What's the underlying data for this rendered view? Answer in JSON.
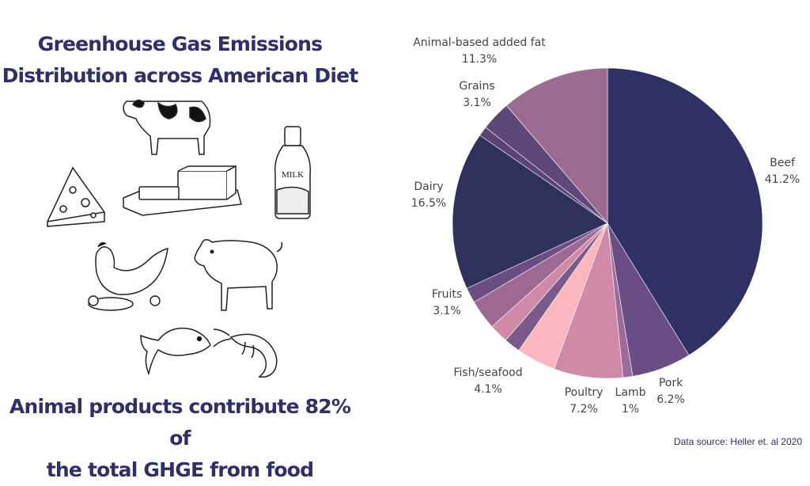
{
  "title": {
    "line1": "Greenhouse Gas Emissions",
    "line2": "Distribution across American Diet"
  },
  "footer": {
    "line1": "Animal products contribute 82% of",
    "line2": "the total GHGE  from food"
  },
  "source": "Data source: Heller et. al 2020",
  "illustrations": {
    "milk_label": "MILK",
    "icons": [
      "cow-icon",
      "cheese-icon",
      "butter-icon",
      "milk-bottle-icon",
      "chicken-icon",
      "pig-icon",
      "fish-icon",
      "shrimp-icon"
    ]
  },
  "colors": {
    "title": "#2e2f6b"
  },
  "chart_data": {
    "type": "pie",
    "title": "",
    "start_angle_deg": 0,
    "direction": "clockwise",
    "slices": [
      {
        "label": "Beef",
        "value": 41.2,
        "display": "41.2%",
        "color": "#2f3066"
      },
      {
        "label": "Pork",
        "value": 6.2,
        "display": "6.2%",
        "color": "#6a4d84"
      },
      {
        "label": "Lamb",
        "value": 1.0,
        "display": "1%",
        "color": "#9c6b9c"
      },
      {
        "label": "Poultry",
        "value": 7.2,
        "display": "7.2%",
        "color": "#d08aa8"
      },
      {
        "label": "Fish/seafood",
        "value": 4.1,
        "display": "4.1%",
        "color": "#fbb6be"
      },
      {
        "label": "Fruits",
        "value": 3.1,
        "display": "3.1%",
        "color": "#9d6891"
      },
      {
        "label": "Dairy",
        "value": 16.5,
        "display": "16.5%",
        "color": "#30305c"
      },
      {
        "label": "Grains",
        "value": 3.1,
        "display": "3.1%",
        "color": "#5e4879"
      },
      {
        "label": "Animal-based added fat",
        "value": 11.3,
        "display": "11.3%",
        "color": "#9b6b91"
      }
    ],
    "extra_slices_unlabeled": [
      {
        "value": 1.7,
        "color": "#7a5a8a"
      },
      {
        "value": 2.0,
        "color": "#d08aa8"
      },
      {
        "value": 1.6,
        "color": "#6a4d84"
      },
      {
        "value": 1.0,
        "color": "#5a4477"
      }
    ]
  }
}
